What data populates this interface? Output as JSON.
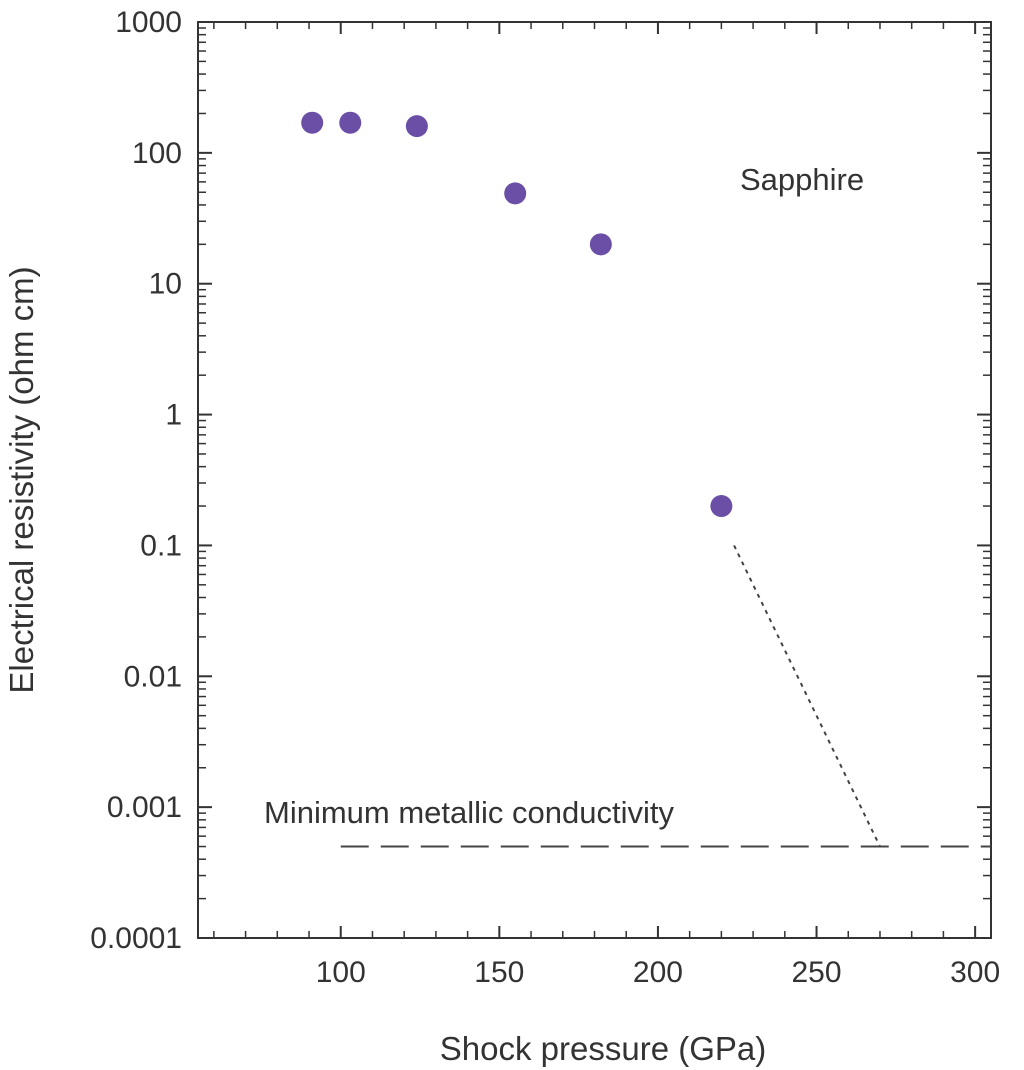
{
  "chart_data": {
    "type": "scatter",
    "title": "",
    "xlabel": "Shock pressure (GPa)",
    "ylabel": "Electrical resistivity (ohm cm)",
    "xlim": [
      55,
      305
    ],
    "ylim": [
      0.0001,
      1000
    ],
    "yscale": "log",
    "xticks": [
      100,
      150,
      200,
      250,
      300
    ],
    "xtick_labels": [
      "100",
      "150",
      "200",
      "250",
      "300"
    ],
    "yticks": [
      0.0001,
      0.001,
      0.01,
      0.1,
      1,
      10,
      100,
      1000
    ],
    "ytick_labels": [
      "0.0001",
      "0.001",
      "0.01",
      "0.1",
      "1",
      "10",
      "100",
      "1000"
    ],
    "grid": false,
    "marker_color": "#6b4fa6",
    "series": [
      {
        "name": "Sapphire",
        "x": [
          91,
          103,
          124,
          155,
          182,
          220
        ],
        "y": [
          170,
          170,
          160,
          49,
          20,
          0.2
        ]
      }
    ],
    "series_label": "Sapphire",
    "reference_line": {
      "label": "Minimum metallic conductivity",
      "y": 0.0005,
      "x_start": 100,
      "x_end": 305
    },
    "extrapolation": {
      "x": [
        224,
        270
      ],
      "y": [
        0.1,
        0.0005
      ]
    }
  }
}
